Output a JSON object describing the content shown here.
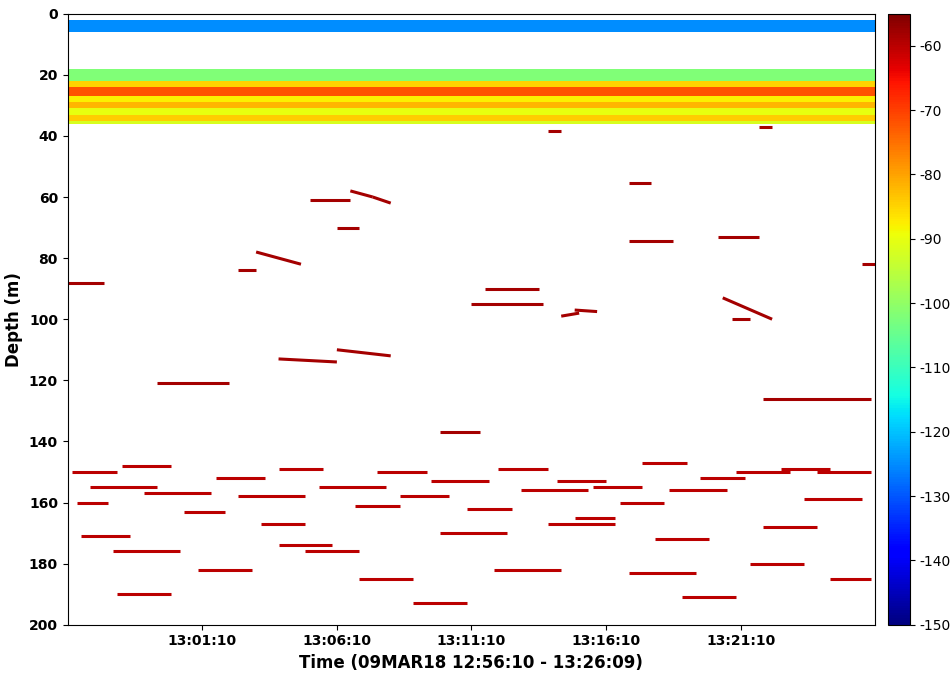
{
  "chart_data": {
    "type": "echogram",
    "xlabel": "Time (09MAR18 12:56:10 - 13:26:09)",
    "ylabel": "Depth (m)",
    "xlim": [
      "12:56:10",
      "13:26:09"
    ],
    "xticks": [
      "13:01:10",
      "13:06:10",
      "13:11:10",
      "13:16:10",
      "13:21:10"
    ],
    "ylim": [
      200,
      0
    ],
    "yticks": [
      0,
      20,
      40,
      60,
      80,
      100,
      120,
      140,
      160,
      180,
      200
    ],
    "colorbar": {
      "range": [
        -150,
        -55
      ],
      "ticks": [
        -60,
        -70,
        -80,
        -90,
        -100,
        -110,
        -120,
        -130,
        -140,
        -150
      ]
    },
    "layers": [
      {
        "depth": [
          2,
          6
        ],
        "value": -125
      },
      {
        "depth": [
          18,
          22
        ],
        "value": -102
      },
      {
        "depth": [
          22,
          24
        ],
        "value": -85
      },
      {
        "depth": [
          24,
          27
        ],
        "value": -72
      },
      {
        "depth": [
          27,
          29
        ],
        "value": -88
      },
      {
        "depth": [
          29,
          31
        ],
        "value": -82
      },
      {
        "depth": [
          31,
          33
        ],
        "value": -90
      },
      {
        "depth": [
          33,
          35
        ],
        "value": -84
      },
      {
        "depth": [
          35,
          36
        ],
        "value": -92
      }
    ],
    "tracks": [
      {
        "x": [
          "12:56:10",
          "12:57:30"
        ],
        "depth": [
          88,
          88
        ],
        "value": -58
      },
      {
        "x": [
          "12:59:30",
          "13:02:10"
        ],
        "depth": [
          121,
          121
        ],
        "value": -58
      },
      {
        "x": [
          "13:02:30",
          "13:03:10"
        ],
        "depth": [
          84,
          84
        ],
        "value": -58
      },
      {
        "x": [
          "13:03:10",
          "13:04:50"
        ],
        "depth": [
          78,
          82
        ],
        "value": -58
      },
      {
        "x": [
          "13:04:00",
          "13:06:10"
        ],
        "depth": [
          113,
          114
        ],
        "value": -58
      },
      {
        "x": [
          "13:05:10",
          "13:06:40"
        ],
        "depth": [
          61,
          61
        ],
        "value": -58
      },
      {
        "x": [
          "13:06:10",
          "13:08:10"
        ],
        "depth": [
          110,
          112
        ],
        "value": -58
      },
      {
        "x": [
          "13:06:40",
          "13:07:30"
        ],
        "depth": [
          58,
          60
        ],
        "value": -58
      },
      {
        "x": [
          "13:07:30",
          "13:08:10"
        ],
        "depth": [
          60,
          62
        ],
        "value": -58
      },
      {
        "x": [
          "13:06:10",
          "13:07:00"
        ],
        "depth": [
          70,
          70
        ],
        "value": -58
      },
      {
        "x": [
          "13:10:00",
          "13:11:30"
        ],
        "depth": [
          137,
          137
        ],
        "value": -58
      },
      {
        "x": [
          "13:11:40",
          "13:13:40"
        ],
        "depth": [
          90,
          90
        ],
        "value": -58
      },
      {
        "x": [
          "13:11:10",
          "13:13:50"
        ],
        "depth": [
          95,
          95
        ],
        "value": -58
      },
      {
        "x": [
          "13:14:30",
          "13:15:10"
        ],
        "depth": [
          99,
          98
        ],
        "value": -58
      },
      {
        "x": [
          "13:15:00",
          "13:15:50"
        ],
        "depth": [
          97,
          97.5
        ],
        "value": -58
      },
      {
        "x": [
          "13:17:00",
          "13:17:50"
        ],
        "depth": [
          55.5,
          55.5
        ],
        "value": -58
      },
      {
        "x": [
          "13:17:00",
          "13:18:40"
        ],
        "depth": [
          74.5,
          74.5
        ],
        "value": -58
      },
      {
        "x": [
          "13:20:20",
          "13:21:50"
        ],
        "depth": [
          73,
          73
        ],
        "value": -58
      },
      {
        "x": [
          "13:20:30",
          "13:22:20"
        ],
        "depth": [
          93,
          100
        ],
        "value": -58
      },
      {
        "x": [
          "13:20:50",
          "13:21:30"
        ],
        "depth": [
          100,
          100
        ],
        "value": -58
      },
      {
        "x": [
          "13:21:50",
          "13:22:20"
        ],
        "depth": [
          37,
          37
        ],
        "value": -58
      },
      {
        "x": [
          "13:14:00",
          "13:14:30"
        ],
        "depth": [
          38.5,
          38.5
        ],
        "value": -58
      },
      {
        "x": [
          "13:25:40",
          "13:26:09"
        ],
        "depth": [
          82,
          82
        ],
        "value": -58
      },
      {
        "x": [
          "13:22:00",
          "13:26:00"
        ],
        "depth": [
          126,
          126
        ],
        "value": -58
      },
      {
        "x": [
          "12:56:20",
          "12:58:00"
        ],
        "depth": [
          150,
          150
        ],
        "value": -60
      },
      {
        "x": [
          "12:57:00",
          "12:59:30"
        ],
        "depth": [
          155,
          155
        ],
        "value": -60
      },
      {
        "x": [
          "12:56:30",
          "12:57:40"
        ],
        "depth": [
          160,
          160
        ],
        "value": -60
      },
      {
        "x": [
          "12:58:10",
          "13:00:00"
        ],
        "depth": [
          148,
          148
        ],
        "value": -60
      },
      {
        "x": [
          "12:59:00",
          "13:01:30"
        ],
        "depth": [
          157,
          157
        ],
        "value": -60
      },
      {
        "x": [
          "13:00:30",
          "13:02:00"
        ],
        "depth": [
          163,
          163
        ],
        "value": -60
      },
      {
        "x": [
          "12:56:40",
          "12:58:30"
        ],
        "depth": [
          171,
          171
        ],
        "value": -60
      },
      {
        "x": [
          "12:57:50",
          "13:00:20"
        ],
        "depth": [
          176,
          176
        ],
        "value": -60
      },
      {
        "x": [
          "13:01:40",
          "13:03:30"
        ],
        "depth": [
          152,
          152
        ],
        "value": -60
      },
      {
        "x": [
          "13:02:30",
          "13:05:00"
        ],
        "depth": [
          158,
          158
        ],
        "value": -60
      },
      {
        "x": [
          "13:04:00",
          "13:05:40"
        ],
        "depth": [
          149,
          149
        ],
        "value": -60
      },
      {
        "x": [
          "13:03:20",
          "13:05:00"
        ],
        "depth": [
          167,
          167
        ],
        "value": -60
      },
      {
        "x": [
          "13:05:30",
          "13:08:00"
        ],
        "depth": [
          155,
          155
        ],
        "value": -60
      },
      {
        "x": [
          "13:06:50",
          "13:08:30"
        ],
        "depth": [
          161,
          161
        ],
        "value": -60
      },
      {
        "x": [
          "13:07:40",
          "13:09:30"
        ],
        "depth": [
          150,
          150
        ],
        "value": -60
      },
      {
        "x": [
          "13:08:30",
          "13:10:20"
        ],
        "depth": [
          158,
          158
        ],
        "value": -60
      },
      {
        "x": [
          "13:05:00",
          "13:07:00"
        ],
        "depth": [
          176,
          176
        ],
        "value": -60
      },
      {
        "x": [
          "13:09:40",
          "13:11:50"
        ],
        "depth": [
          153,
          153
        ],
        "value": -60
      },
      {
        "x": [
          "13:11:00",
          "13:12:40"
        ],
        "depth": [
          162,
          162
        ],
        "value": -60
      },
      {
        "x": [
          "13:12:10",
          "13:14:00"
        ],
        "depth": [
          149,
          149
        ],
        "value": -60
      },
      {
        "x": [
          "13:13:00",
          "13:15:30"
        ],
        "depth": [
          156,
          156
        ],
        "value": -60
      },
      {
        "x": [
          "13:14:20",
          "13:16:10"
        ],
        "depth": [
          153,
          153
        ],
        "value": -60
      },
      {
        "x": [
          "13:15:40",
          "13:17:30"
        ],
        "depth": [
          155,
          155
        ],
        "value": -60
      },
      {
        "x": [
          "13:16:40",
          "13:18:20"
        ],
        "depth": [
          160,
          160
        ],
        "value": -60
      },
      {
        "x": [
          "13:17:30",
          "13:19:10"
        ],
        "depth": [
          147,
          147
        ],
        "value": -60
      },
      {
        "x": [
          "13:18:30",
          "13:20:40"
        ],
        "depth": [
          156,
          156
        ],
        "value": -60
      },
      {
        "x": [
          "13:19:40",
          "13:21:20"
        ],
        "depth": [
          152,
          152
        ],
        "value": -60
      },
      {
        "x": [
          "13:21:00",
          "13:23:00"
        ],
        "depth": [
          150,
          150
        ],
        "value": -60
      },
      {
        "x": [
          "13:22:40",
          "13:24:30"
        ],
        "depth": [
          149,
          149
        ],
        "value": -60
      },
      {
        "x": [
          "13:24:00",
          "13:26:00"
        ],
        "depth": [
          150,
          150
        ],
        "value": -60
      },
      {
        "x": [
          "13:23:30",
          "13:25:40"
        ],
        "depth": [
          159,
          159
        ],
        "value": -60
      },
      {
        "x": [
          "13:10:00",
          "13:12:30"
        ],
        "depth": [
          170,
          170
        ],
        "value": -60
      },
      {
        "x": [
          "13:14:00",
          "13:16:30"
        ],
        "depth": [
          167,
          167
        ],
        "value": -60
      },
      {
        "x": [
          "13:18:00",
          "13:20:00"
        ],
        "depth": [
          172,
          172
        ],
        "value": -60
      },
      {
        "x": [
          "13:22:00",
          "13:24:00"
        ],
        "depth": [
          168,
          168
        ],
        "value": -60
      },
      {
        "x": [
          "13:01:00",
          "13:03:00"
        ],
        "depth": [
          182,
          182
        ],
        "value": -60
      },
      {
        "x": [
          "13:07:00",
          "13:09:00"
        ],
        "depth": [
          185,
          185
        ],
        "value": -60
      },
      {
        "x": [
          "13:12:00",
          "13:14:30"
        ],
        "depth": [
          182,
          182
        ],
        "value": -60
      },
      {
        "x": [
          "13:17:00",
          "13:19:30"
        ],
        "depth": [
          183,
          183
        ],
        "value": -60
      },
      {
        "x": [
          "13:21:30",
          "13:23:30"
        ],
        "depth": [
          180,
          180
        ],
        "value": -60
      },
      {
        "x": [
          "12:58:00",
          "13:00:00"
        ],
        "depth": [
          190,
          190
        ],
        "value": -60
      },
      {
        "x": [
          "13:09:00",
          "13:11:00"
        ],
        "depth": [
          193,
          193
        ],
        "value": -60
      },
      {
        "x": [
          "13:19:00",
          "13:21:00"
        ],
        "depth": [
          191,
          191
        ],
        "value": -60
      },
      {
        "x": [
          "13:04:00",
          "13:06:00"
        ],
        "depth": [
          174,
          174
        ],
        "value": -60
      },
      {
        "x": [
          "13:15:00",
          "13:16:30"
        ],
        "depth": [
          165,
          165
        ],
        "value": -60
      },
      {
        "x": [
          "13:24:30",
          "13:26:00"
        ],
        "depth": [
          185,
          185
        ],
        "value": -60
      }
    ]
  }
}
